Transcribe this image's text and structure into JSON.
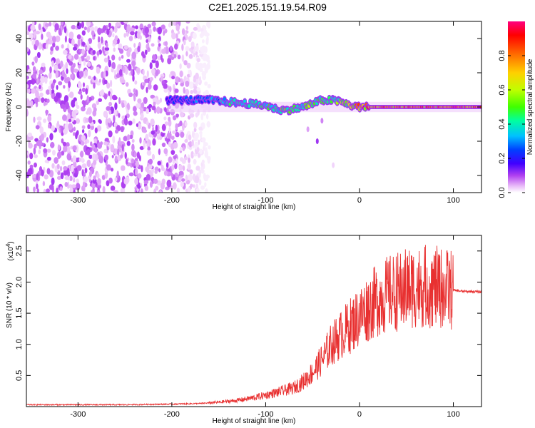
{
  "title": "C2E1.2025.151.19.54.R09",
  "chart_data": [
    {
      "type": "heatmap",
      "xlabel": "Height of straight line (km)",
      "ylabel": "Frequency (Hz)",
      "xlim": [
        -355,
        130
      ],
      "ylim": [
        -50,
        50
      ],
      "xticks": [
        -300,
        -200,
        -100,
        0,
        100
      ],
      "yticks": [
        -40,
        -20,
        0,
        20,
        40
      ],
      "xtick_labels": [
        "-300",
        "-200",
        "-100",
        "0",
        "100"
      ],
      "ytick_labels": [
        "-40",
        "-20",
        "0",
        "20",
        "40"
      ],
      "colorbar": {
        "label": "Normalized spectral amplitude",
        "range": [
          0,
          1
        ],
        "ticks": [
          0.0,
          0.2,
          0.4,
          0.6,
          0.8
        ],
        "tick_labels": [
          "0.0",
          "0.2",
          "0.4",
          "0.6",
          "0.8"
        ],
        "colors": [
          "#ffffff",
          "#e8b8f8",
          "#b040f0",
          "#4000ff",
          "#0040ff",
          "#00c0ff",
          "#00ffa0",
          "#40ff00",
          "#c0ff00",
          "#ffd000",
          "#ff6000",
          "#ff0000",
          "#ff0080"
        ]
      },
      "noise_region_x": [
        -355,
        -160
      ],
      "ridge": {
        "x": [
          -205,
          -180,
          -160,
          -140,
          -120,
          -100,
          -90,
          -80,
          -70,
          -60,
          -50,
          -40,
          -30,
          -20,
          -10,
          0,
          20,
          60,
          100,
          130
        ],
        "freq": [
          4,
          4,
          4,
          3,
          2,
          1,
          -1,
          -2,
          -1,
          0,
          2,
          4,
          4,
          3,
          1,
          0,
          0,
          0,
          0,
          0
        ],
        "amplitude": [
          0.3,
          0.35,
          0.4,
          0.5,
          0.55,
          0.55,
          0.55,
          0.6,
          0.55,
          0.6,
          0.6,
          0.55,
          0.55,
          0.65,
          0.75,
          0.85,
          0.9,
          0.92,
          0.9,
          0.9
        ]
      }
    },
    {
      "type": "line",
      "xlabel": "Height of straight line (km)",
      "ylabel": "SNR (10 * v/v)",
      "scale_label": "(x10",
      "scale_exponent": "4",
      "scale_suffix": ")",
      "xlim": [
        -355,
        130
      ],
      "ylim": [
        0,
        2.75
      ],
      "xticks": [
        -300,
        -200,
        -100,
        0,
        100
      ],
      "yticks": [
        0.5,
        1.0,
        1.5,
        2.0,
        2.5
      ],
      "xtick_labels": [
        "-300",
        "-200",
        "-100",
        "0",
        "100"
      ],
      "ytick_labels": [
        "0.5",
        "1.0",
        "1.5",
        "2.0",
        "2.5"
      ],
      "series": [
        {
          "color": "#e83030",
          "x": [
            -355,
            -300,
            -250,
            -200,
            -170,
            -150,
            -130,
            -110,
            -90,
            -70,
            -60,
            -50,
            -40,
            -30,
            -20,
            -10,
            0,
            10,
            20,
            30,
            40,
            50,
            60,
            70,
            80,
            90,
            100,
            110,
            120,
            130
          ],
          "y": [
            0.03,
            0.03,
            0.03,
            0.04,
            0.05,
            0.07,
            0.1,
            0.15,
            0.22,
            0.3,
            0.4,
            0.55,
            0.75,
            1.0,
            1.15,
            1.3,
            1.45,
            1.6,
            1.72,
            1.8,
            1.85,
            1.9,
            1.93,
            1.93,
            1.92,
            1.9,
            1.87,
            1.85,
            1.85,
            1.84
          ]
        }
      ]
    }
  ]
}
